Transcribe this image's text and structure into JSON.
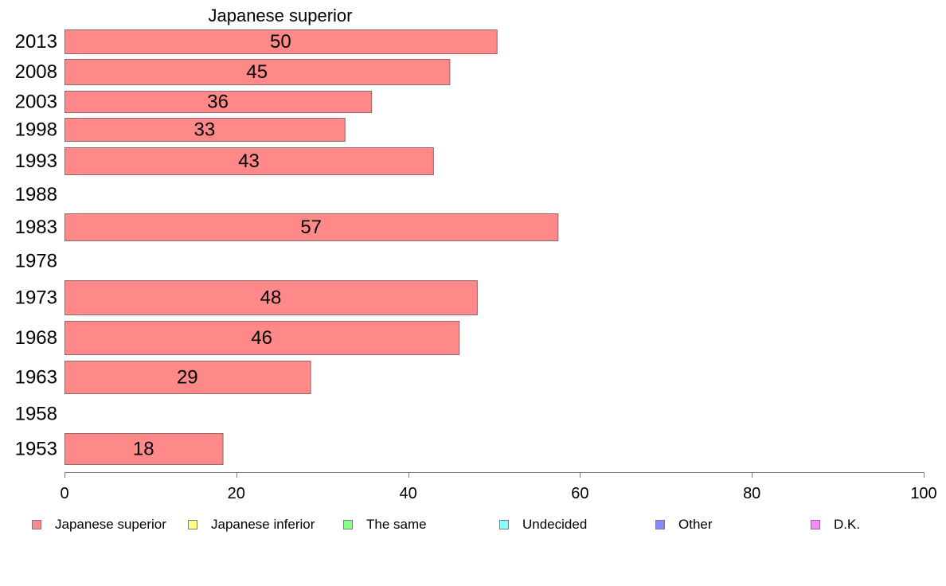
{
  "chart_data": {
    "type": "bar",
    "orientation": "horizontal",
    "title": "Japanese superior",
    "xlabel": "",
    "ylabel": "",
    "xlim": [
      0,
      100
    ],
    "x_ticks": [
      0,
      20,
      40,
      60,
      80,
      100
    ],
    "grid": false,
    "legend_position": "bottom",
    "categories": [
      "2013",
      "2008",
      "2003",
      "1998",
      "1993",
      "1988",
      "1983",
      "1978",
      "1973",
      "1968",
      "1963",
      "1958",
      "1953"
    ],
    "series": [
      {
        "name": "Japanese superior",
        "color": "#ff8888",
        "values": [
          50,
          45,
          36,
          33,
          43,
          null,
          57,
          null,
          48,
          46,
          29,
          null,
          18
        ],
        "plot_values": [
          50.3,
          44.8,
          35.7,
          32.6,
          42.9,
          null,
          57.4,
          null,
          48.0,
          45.9,
          28.6,
          null,
          18.4
        ]
      }
    ],
    "legend": [
      {
        "label": "Japanese superior",
        "color": "#ff8888"
      },
      {
        "label": "Japanese inferior",
        "color": "#ffff88"
      },
      {
        "label": "The same",
        "color": "#88ff88"
      },
      {
        "label": "Undecided",
        "color": "#88ffff"
      },
      {
        "label": "Other",
        "color": "#8888ff"
      },
      {
        "label": "D.K.",
        "color": "#ff88ff"
      }
    ]
  }
}
